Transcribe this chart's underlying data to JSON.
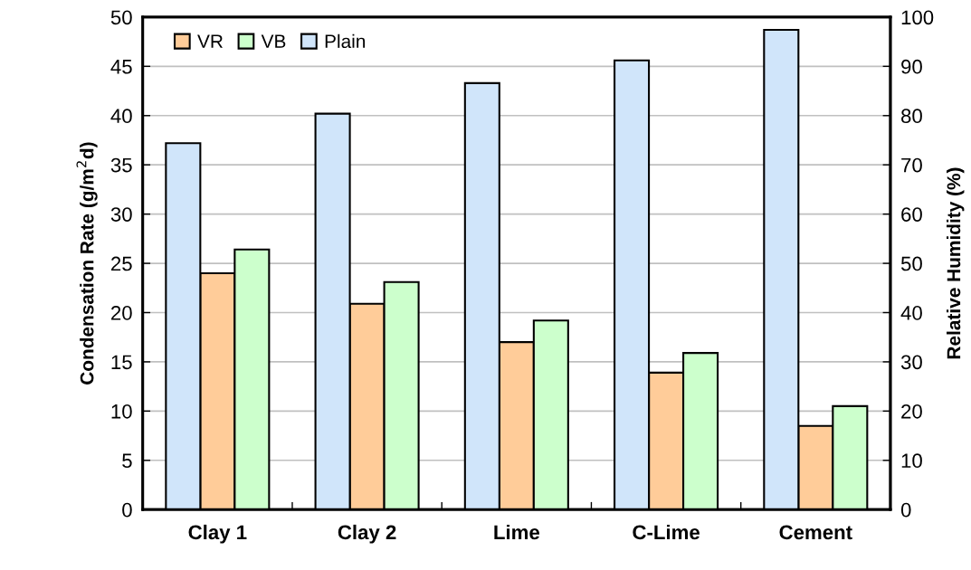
{
  "chart_data": {
    "type": "bar",
    "categories": [
      "Clay 1",
      "Clay 2",
      "Lime",
      "C-Lime",
      "Cement"
    ],
    "series": [
      {
        "name": "VR",
        "color": "#ffcc99",
        "values": [
          24.0,
          20.9,
          17.0,
          13.9,
          8.5
        ]
      },
      {
        "name": "VB",
        "color": "#ccffcc",
        "values": [
          26.4,
          23.1,
          19.2,
          15.9,
          10.5
        ]
      },
      {
        "name": "Plain",
        "color": "#d0e5fa",
        "values": [
          37.2,
          40.2,
          43.3,
          45.6,
          48.7
        ]
      }
    ],
    "ylabel": "Condensation Rate (g/m$^{2}$d)",
    "y2label": "Relative Humidity (%)",
    "ylim": [
      0,
      50
    ],
    "yticks": [
      0,
      5,
      10,
      15,
      20,
      25,
      30,
      35,
      40,
      45,
      50
    ],
    "y2lim": [
      0,
      100
    ],
    "y2ticks": [
      0,
      10,
      20,
      30,
      40,
      50,
      60,
      70,
      80,
      90,
      100
    ],
    "grid": "y",
    "legend": "top left"
  }
}
